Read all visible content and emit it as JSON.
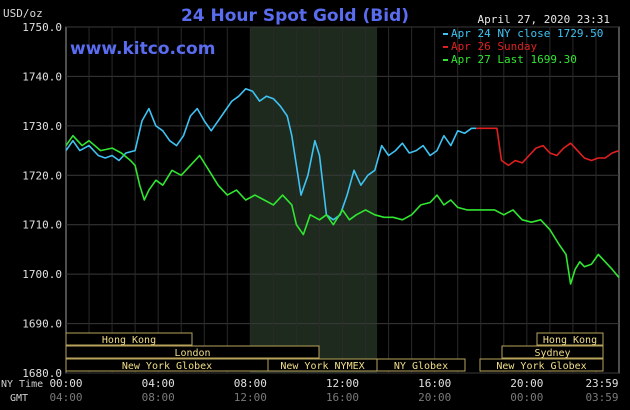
{
  "chart_data": {
    "type": "line",
    "title": "24 Hour Spot Gold (Bid)",
    "ylabel": "USD/oz",
    "watermark": "www.kitco.com",
    "date": "April 27, 2020 23:31",
    "ylim": [
      1680,
      1750
    ],
    "yticks": [
      "1750.0",
      "1740.0",
      "1730.0",
      "1720.0",
      "1710.0",
      "1700.0",
      "1690.0",
      "1680.0"
    ],
    "ytick_values": [
      1750,
      1740,
      1730,
      1720,
      1710,
      1700,
      1690,
      1680
    ],
    "xlim": [
      0,
      24
    ],
    "x_row_label": "NY Time",
    "gmt_row_label": "GMT",
    "x_ticks": [
      {
        "h": 0,
        "ny": "00:00",
        "gmt": "04:00"
      },
      {
        "h": 4,
        "ny": "04:00",
        "gmt": "08:00"
      },
      {
        "h": 8,
        "ny": "08:00",
        "gmt": "12:00"
      },
      {
        "h": 12,
        "ny": "12:00",
        "gmt": "16:00"
      },
      {
        "h": 16,
        "ny": "16:00",
        "gmt": "20:00"
      },
      {
        "h": 20,
        "ny": "20:00",
        "gmt": "00:00"
      },
      {
        "h": 23.98,
        "ny": "23:59",
        "gmt": "03:59"
      }
    ],
    "shaded_session": [
      8,
      13.5
    ],
    "grid": true,
    "legend_position": "top-right",
    "series": [
      {
        "name": "Apr 24 NY close 1729.50",
        "color": "#3ec3f3",
        "x": [
          0,
          0.3,
          0.6,
          1.0,
          1.4,
          1.7,
          2.0,
          2.3,
          2.6,
          3.0,
          3.3,
          3.6,
          3.9,
          4.2,
          4.5,
          4.8,
          5.1,
          5.4,
          5.7,
          6.0,
          6.3,
          6.6,
          6.9,
          7.2,
          7.5,
          7.8,
          8.1,
          8.4,
          8.7,
          9.0,
          9.3,
          9.6,
          9.8,
          10.0,
          10.2,
          10.5,
          10.8,
          11.0,
          11.3,
          11.6,
          11.9,
          12.2,
          12.5,
          12.8,
          13.1,
          13.4,
          13.7,
          14.0,
          14.3,
          14.6,
          14.9,
          15.2,
          15.5,
          15.8,
          16.1,
          16.4,
          16.7,
          17.0,
          17.3,
          17.6,
          17.8
        ],
        "y": [
          1725,
          1727,
          1725,
          1726,
          1724,
          1723.5,
          1724,
          1723,
          1724.5,
          1725,
          1731,
          1733.5,
          1730,
          1729,
          1727,
          1726,
          1728,
          1732,
          1733.5,
          1731,
          1729,
          1731,
          1733,
          1735,
          1736,
          1737.5,
          1737,
          1735,
          1736,
          1735.5,
          1734,
          1732,
          1728,
          1722,
          1716,
          1720,
          1727,
          1724,
          1712,
          1711,
          1712,
          1716,
          1721,
          1718,
          1720,
          1721,
          1726,
          1724,
          1725,
          1726.5,
          1724.5,
          1725,
          1726,
          1724,
          1725,
          1728,
          1726,
          1729,
          1728.5,
          1729.5,
          1729.5
        ]
      },
      {
        "name": "Apr 26 Sunday",
        "color": "#e02020",
        "x": [
          17.8,
          18.1,
          18.4,
          18.7,
          18.9,
          19.2,
          19.5,
          19.8,
          20.1,
          20.4,
          20.7,
          21.0,
          21.3,
          21.6,
          21.9,
          22.2,
          22.5,
          22.8,
          23.1,
          23.4,
          23.7,
          24.0
        ],
        "y": [
          1729.5,
          1729.5,
          1729.5,
          1729.5,
          1723,
          1722,
          1723,
          1722.5,
          1724,
          1725.5,
          1726,
          1724.5,
          1724,
          1725.5,
          1726.5,
          1725,
          1723.5,
          1723,
          1723.5,
          1723.5,
          1724.5,
          1725
        ]
      },
      {
        "name": "Apr 27 Last 1699.30",
        "color": "#31e631",
        "x": [
          0,
          0.3,
          0.7,
          1.0,
          1.5,
          2.0,
          2.4,
          2.8,
          3.0,
          3.2,
          3.4,
          3.6,
          3.9,
          4.2,
          4.6,
          5.0,
          5.4,
          5.8,
          6.2,
          6.6,
          7.0,
          7.4,
          7.8,
          8.2,
          8.6,
          9.0,
          9.4,
          9.8,
          10.0,
          10.3,
          10.6,
          11.0,
          11.3,
          11.6,
          12.0,
          12.3,
          12.6,
          13.0,
          13.4,
          13.8,
          14.2,
          14.6,
          15.0,
          15.4,
          15.8,
          16.1,
          16.4,
          16.7,
          17.0,
          17.4,
          17.8,
          18.2,
          18.6,
          19.0,
          19.4,
          19.8,
          20.2,
          20.6,
          21.0,
          21.4,
          21.7,
          21.9,
          22.1,
          22.3,
          22.5,
          22.8,
          23.1,
          23.4,
          23.7,
          24.0
        ],
        "y": [
          1726,
          1728,
          1726,
          1727,
          1725,
          1725.5,
          1724.5,
          1723,
          1722,
          1718,
          1715,
          1717,
          1719,
          1718,
          1721,
          1720,
          1722,
          1724,
          1721,
          1718,
          1716,
          1717,
          1715,
          1716,
          1715,
          1714,
          1716,
          1714,
          1710,
          1708,
          1712,
          1711,
          1712,
          1710,
          1713,
          1711,
          1712,
          1713,
          1712,
          1711.5,
          1711.5,
          1711,
          1712,
          1714,
          1714.5,
          1716,
          1714,
          1715,
          1713.5,
          1713,
          1713,
          1713,
          1713,
          1712,
          1713,
          1711,
          1710.5,
          1711,
          1709,
          1706,
          1704,
          1698,
          1701,
          1702.5,
          1701.5,
          1702,
          1704,
          1702.5,
          1701,
          1699.3
        ]
      }
    ],
    "sessions": [
      {
        "label": "Hong Kong",
        "start": 0,
        "end": 8.4
      },
      {
        "label": "London",
        "start": 0,
        "end": 16.9
      },
      {
        "label": "New York Globex",
        "start": 0,
        "end": 13.6
      },
      {
        "label": "New York NYMEX",
        "start": 13.6,
        "end": 21.1
      },
      {
        "label": "NY Globex",
        "start": 21.1,
        "end": 26.8
      },
      {
        "label": "Hong Kong",
        "start": 31.3,
        "end": 37.8
      },
      {
        "label": "Sydney",
        "start": 30.3,
        "end": 37.8
      },
      {
        "label": "New York Globex",
        "start": 28.1,
        "end": 37.8
      }
    ]
  }
}
